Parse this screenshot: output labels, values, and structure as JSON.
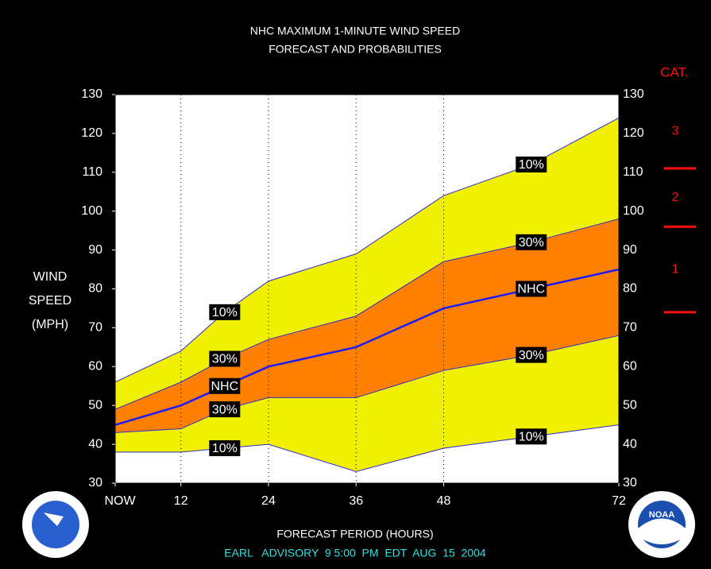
{
  "chart_data": {
    "type": "band",
    "title": [
      "NHC MAXIMUM 1-MINUTE WIND SPEED",
      "FORECAST AND PROBABILITIES"
    ],
    "ylabel": [
      "WIND",
      "SPEED",
      "(MPH)"
    ],
    "xlabel": "FORECAST PERIOD (HOURS)",
    "footer": "EARL   ADVISORY  9 5:00  PM  EDT  AUG  15  2004",
    "x": [
      3,
      12,
      18,
      24,
      36,
      48,
      60,
      72
    ],
    "xlim": [
      3,
      72
    ],
    "xticks": [
      {
        "value": 3,
        "label": "NOW"
      },
      12,
      24,
      36,
      48,
      72
    ],
    "ylim": [
      30,
      130
    ],
    "yticks": [
      30,
      40,
      50,
      60,
      70,
      80,
      90,
      100,
      110,
      120,
      130
    ],
    "grid": true,
    "edge_color": "#2a2ad0",
    "series": [
      {
        "name": "10%",
        "color": "#f0f000",
        "values": [
          56,
          64,
          74,
          82,
          89,
          104,
          112,
          124
        ]
      },
      {
        "name": "30%",
        "color": "#ff8000",
        "values": [
          49,
          56,
          62,
          67,
          73,
          87,
          92,
          98
        ]
      },
      {
        "name": "NHC",
        "color": "#1a1aff",
        "values": [
          45,
          50,
          55,
          60,
          65,
          75,
          80,
          85
        ]
      },
      {
        "name": "30%",
        "color": "#ff8000",
        "values": [
          43,
          44,
          49,
          52,
          52,
          59,
          63,
          68
        ]
      },
      {
        "name": "10%",
        "color": "#f0f000",
        "values": [
          38,
          38,
          39,
          40,
          33,
          39,
          42,
          45
        ]
      }
    ],
    "category_scale": {
      "title": "CAT.",
      "color": "#ff1010",
      "labels": [
        "1",
        "2",
        "3"
      ],
      "thresholds": [
        74,
        96,
        111
      ]
    },
    "logo_text": "NOAA"
  }
}
